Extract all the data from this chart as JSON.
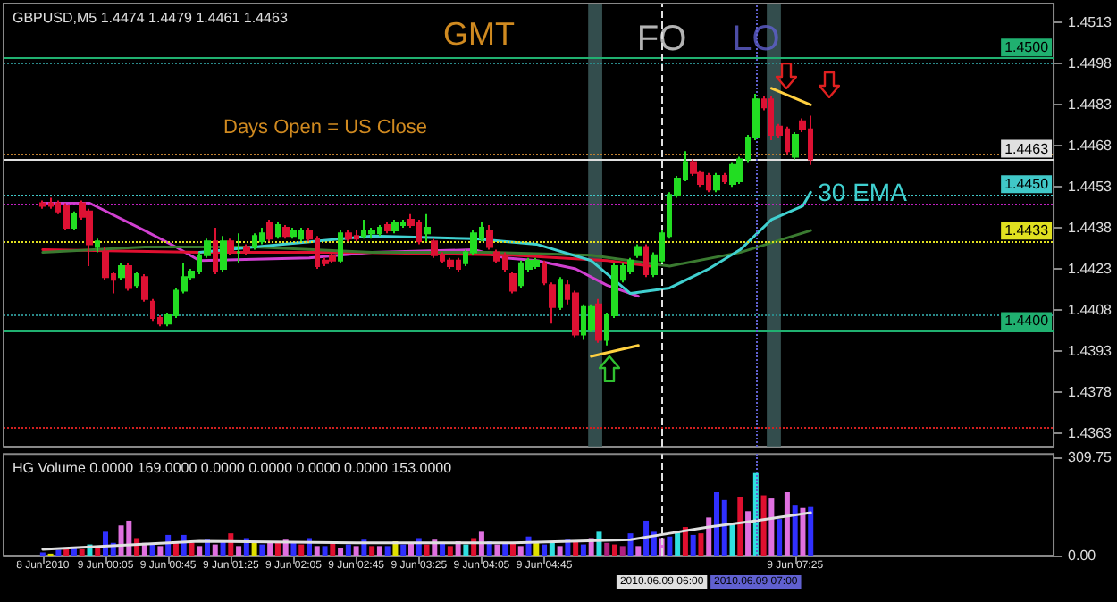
{
  "chart_data": [
    {
      "type": "candlestick",
      "title": "GBPUSD,M5 1.4474 1.4479 1.4461 1.4463",
      "x": [
        "2010-06-08T23:25",
        "2010-06-08T23:30",
        "2010-06-08T23:35",
        "2010-06-08T23:40",
        "2010-06-08T23:45",
        "2010-06-08T23:50",
        "2010-06-08T23:55",
        "2010-06-09T00:00",
        "2010-06-09T00:05",
        "2010-06-09T00:10",
        "2010-06-09T00:15",
        "2010-06-09T00:20",
        "2010-06-09T00:25",
        "2010-06-09T00:30",
        "2010-06-09T00:35",
        "2010-06-09T00:40",
        "2010-06-09T00:45",
        "2010-06-09T00:50",
        "2010-06-09T00:55",
        "2010-06-09T01:00",
        "2010-06-09T01:05",
        "2010-06-09T01:10",
        "2010-06-09T01:15",
        "2010-06-09T01:20",
        "2010-06-09T01:25",
        "2010-06-09T01:30",
        "2010-06-09T01:35",
        "2010-06-09T01:40",
        "2010-06-09T01:45",
        "2010-06-09T01:50",
        "2010-06-09T01:55",
        "2010-06-09T02:00",
        "2010-06-09T02:05",
        "2010-06-09T02:10",
        "2010-06-09T02:15",
        "2010-06-09T02:20",
        "2010-06-09T02:25",
        "2010-06-09T02:30",
        "2010-06-09T02:35",
        "2010-06-09T02:40",
        "2010-06-09T02:45",
        "2010-06-09T02:50",
        "2010-06-09T02:55",
        "2010-06-09T03:00",
        "2010-06-09T03:05",
        "2010-06-09T03:10",
        "2010-06-09T03:15",
        "2010-06-09T03:20",
        "2010-06-09T03:25",
        "2010-06-09T03:30",
        "2010-06-09T03:35",
        "2010-06-09T03:40",
        "2010-06-09T03:45",
        "2010-06-09T03:50",
        "2010-06-09T03:55",
        "2010-06-09T04:00",
        "2010-06-09T04:05",
        "2010-06-09T04:10",
        "2010-06-09T04:15",
        "2010-06-09T04:20",
        "2010-06-09T04:25",
        "2010-06-09T04:30",
        "2010-06-09T04:35",
        "2010-06-09T04:40",
        "2010-06-09T04:45",
        "2010-06-09T04:50",
        "2010-06-09T04:55",
        "2010-06-09T05:00",
        "2010-06-09T05:05",
        "2010-06-09T05:10",
        "2010-06-09T05:15",
        "2010-06-09T05:20",
        "2010-06-09T05:25",
        "2010-06-09T05:30",
        "2010-06-09T05:35",
        "2010-06-09T05:40",
        "2010-06-09T05:45",
        "2010-06-09T05:50",
        "2010-06-09T05:55",
        "2010-06-09T06:00",
        "2010-06-09T06:05",
        "2010-06-09T06:10",
        "2010-06-09T06:15",
        "2010-06-09T06:20",
        "2010-06-09T06:25",
        "2010-06-09T06:30",
        "2010-06-09T06:35",
        "2010-06-09T06:40",
        "2010-06-09T06:45",
        "2010-06-09T06:50",
        "2010-06-09T06:55",
        "2010-06-09T07:00",
        "2010-06-09T07:05",
        "2010-06-09T07:10",
        "2010-06-09T07:15",
        "2010-06-09T07:20",
        "2010-06-09T07:25",
        "2010-06-09T07:30",
        "2010-06-09T07:35"
      ],
      "ohlc": [
        [
          1.4447,
          1.4448,
          1.4445,
          1.4446
        ],
        [
          1.4447,
          1.4449,
          1.4445,
          1.4446
        ],
        [
          1.4447,
          1.4448,
          1.4443,
          1.4444
        ],
        [
          1.4446,
          1.4447,
          1.4437,
          1.4438
        ],
        [
          1.4438,
          1.4444,
          1.4437,
          1.4443
        ],
        [
          1.4447,
          1.4448,
          1.4441,
          1.4442
        ],
        [
          1.4444,
          1.4445,
          1.4424,
          1.4432
        ],
        [
          1.4431,
          1.4434,
          1.4429,
          1.4433
        ],
        [
          1.4429,
          1.4431,
          1.4419,
          1.442
        ],
        [
          1.4421,
          1.4422,
          1.4414,
          1.4419
        ],
        [
          1.442,
          1.4425,
          1.4419,
          1.4424
        ],
        [
          1.4424,
          1.4425,
          1.4415,
          1.4416
        ],
        [
          1.4417,
          1.4422,
          1.4416,
          1.4421
        ],
        [
          1.442,
          1.4421,
          1.4411,
          1.4412
        ],
        [
          1.4411,
          1.4412,
          1.4404,
          1.4405
        ],
        [
          1.4405,
          1.4406,
          1.4402,
          1.4403
        ],
        [
          1.4403,
          1.4407,
          1.4402,
          1.4406
        ],
        [
          1.4406,
          1.4416,
          1.4405,
          1.4415
        ],
        [
          1.4415,
          1.4425,
          1.4414,
          1.442
        ],
        [
          1.442,
          1.4423,
          1.4419,
          1.4422
        ],
        [
          1.4422,
          1.4429,
          1.4421,
          1.4428
        ],
        [
          1.4428,
          1.4434,
          1.4427,
          1.4433
        ],
        [
          1.4433,
          1.4438,
          1.4421,
          1.4422
        ],
        [
          1.4423,
          1.4435,
          1.4422,
          1.4433
        ],
        [
          1.4433,
          1.4434,
          1.4428,
          1.4429
        ],
        [
          1.4429,
          1.4436,
          1.4425,
          1.4429
        ],
        [
          1.4431,
          1.4432,
          1.4428,
          1.4429
        ],
        [
          1.4431,
          1.4436,
          1.443,
          1.4435
        ],
        [
          1.4433,
          1.4438,
          1.4432,
          1.4436
        ],
        [
          1.444,
          1.4441,
          1.4433,
          1.4434
        ],
        [
          1.4435,
          1.444,
          1.4434,
          1.4439
        ],
        [
          1.4438,
          1.4439,
          1.4434,
          1.4435
        ],
        [
          1.4435,
          1.4438,
          1.4434,
          1.4437
        ],
        [
          1.4434,
          1.4438,
          1.4433,
          1.4437
        ],
        [
          1.4437,
          1.4438,
          1.4433,
          1.4434
        ],
        [
          1.4434,
          1.4435,
          1.4423,
          1.4424
        ],
        [
          1.4426,
          1.4427,
          1.4424,
          1.4425
        ],
        [
          1.4428,
          1.4429,
          1.4425,
          1.4426
        ],
        [
          1.4426,
          1.4437,
          1.4425,
          1.4436
        ],
        [
          1.4436,
          1.4437,
          1.4433,
          1.4434
        ],
        [
          1.4435,
          1.4437,
          1.4433,
          1.4434
        ],
        [
          1.4435,
          1.4441,
          1.4434,
          1.4437
        ],
        [
          1.4436,
          1.4438,
          1.4434,
          1.4437
        ],
        [
          1.4436,
          1.4439,
          1.4435,
          1.4438
        ],
        [
          1.4439,
          1.444,
          1.4436,
          1.4437
        ],
        [
          1.4437,
          1.4441,
          1.4436,
          1.444
        ],
        [
          1.4439,
          1.4441,
          1.4438,
          1.444
        ],
        [
          1.4441,
          1.4443,
          1.4438,
          1.4439
        ],
        [
          1.444,
          1.4441,
          1.4432,
          1.4433
        ],
        [
          1.4436,
          1.4443,
          1.4433,
          1.4438
        ],
        [
          1.4433,
          1.4434,
          1.4427,
          1.4428
        ],
        [
          1.4428,
          1.4429,
          1.4425,
          1.4426
        ],
        [
          1.4426,
          1.4427,
          1.4423,
          1.4424
        ],
        [
          1.4426,
          1.4427,
          1.4422,
          1.4423
        ],
        [
          1.4425,
          1.443,
          1.4424,
          1.4429
        ],
        [
          1.4429,
          1.4437,
          1.4428,
          1.4436
        ],
        [
          1.4434,
          1.444,
          1.4433,
          1.4438
        ],
        [
          1.4437,
          1.4439,
          1.443,
          1.4431
        ],
        [
          1.4429,
          1.443,
          1.4425,
          1.4426
        ],
        [
          1.4428,
          1.4429,
          1.4422,
          1.4423
        ],
        [
          1.4421,
          1.4422,
          1.4414,
          1.4415
        ],
        [
          1.4417,
          1.4426,
          1.4416,
          1.4425
        ],
        [
          1.4423,
          1.4427,
          1.4422,
          1.4426
        ],
        [
          1.4424,
          1.4427,
          1.4423,
          1.4426
        ],
        [
          1.4425,
          1.4426,
          1.4417,
          1.4418
        ],
        [
          1.4417,
          1.4418,
          1.4403,
          1.4409
        ],
        [
          1.4409,
          1.442,
          1.4408,
          1.4419
        ],
        [
          1.4417,
          1.4419,
          1.441,
          1.4412
        ],
        [
          1.4414,
          1.4415,
          1.4398,
          1.4399
        ],
        [
          1.4399,
          1.441,
          1.4397,
          1.4409
        ],
        [
          1.4401,
          1.441,
          1.44,
          1.4409
        ],
        [
          1.441,
          1.4412,
          1.4396,
          1.4397
        ],
        [
          1.4397,
          1.4407,
          1.4395,
          1.4406
        ],
        [
          1.4406,
          1.4425,
          1.4405,
          1.4424
        ],
        [
          1.4419,
          1.4425,
          1.4418,
          1.4424
        ],
        [
          1.4422,
          1.4427,
          1.4421,
          1.4426
        ],
        [
          1.4428,
          1.4432,
          1.4427,
          1.4431
        ],
        [
          1.4431,
          1.4432,
          1.442,
          1.4421
        ],
        [
          1.4421,
          1.4429,
          1.442,
          1.4428
        ],
        [
          1.4426,
          1.4437,
          1.4425,
          1.4436
        ],
        [
          1.4435,
          1.4451,
          1.4434,
          1.445
        ],
        [
          1.445,
          1.4457,
          1.4449,
          1.4456
        ],
        [
          1.4456,
          1.4466,
          1.4455,
          1.4462
        ],
        [
          1.4462,
          1.4463,
          1.4457,
          1.4458
        ],
        [
          1.4458,
          1.4459,
          1.4453,
          1.4454
        ],
        [
          1.4457,
          1.4458,
          1.4451,
          1.4452
        ],
        [
          1.4452,
          1.4458,
          1.4451,
          1.4457
        ],
        [
          1.4457,
          1.4458,
          1.4454,
          1.4455
        ],
        [
          1.4454,
          1.4462,
          1.4453,
          1.4461
        ],
        [
          1.4455,
          1.4464,
          1.4454,
          1.4463
        ],
        [
          1.4463,
          1.4472,
          1.4462,
          1.4471
        ],
        [
          1.4471,
          1.4487,
          1.447,
          1.4485
        ],
        [
          1.4485,
          1.4486,
          1.4481,
          1.4482
        ],
        [
          1.4485,
          1.4486,
          1.447,
          1.4472
        ],
        [
          1.4475,
          1.4476,
          1.4471,
          1.4472
        ],
        [
          1.4474,
          1.4475,
          1.4465,
          1.4466
        ],
        [
          1.4464,
          1.4473,
          1.4463,
          1.4472
        ],
        [
          1.4477,
          1.4478,
          1.4473,
          1.4474
        ],
        [
          1.4474,
          1.4479,
          1.4461,
          1.4463
        ]
      ],
      "series": [
        {
          "type": "line",
          "color": "#d040d0",
          "x": [
            "2010-06-08T23:25",
            "2010-06-08T23:55",
            "2010-06-09T00:30",
            "2010-06-09T00:50",
            "2010-06-09T01:05",
            "2010-06-09T02:15",
            "2010-06-09T02:55",
            "2010-06-09T04:00",
            "2010-06-09T04:20",
            "2010-06-09T04:40",
            "2010-06-09T05:05",
            "2010-06-09T05:25",
            "2010-06-09T05:40",
            "2010-06-09T05:45"
          ],
          "values": [
            1.4447,
            1.4447,
            1.4437,
            1.4431,
            1.4426,
            1.4427,
            1.4429,
            1.443,
            1.4427,
            1.4426,
            1.4423,
            1.4417,
            1.4414,
            1.4413
          ]
        },
        {
          "type": "line",
          "color": "#e01030",
          "x": [
            "2010-06-08T23:25",
            "2010-06-09T01:05",
            "2010-06-09T02:45",
            "2010-06-09T04:25",
            "2010-06-09T05:25",
            "2010-06-09T05:53"
          ],
          "values": [
            1.443,
            1.4429,
            1.4429,
            1.4428,
            1.4426,
            1.4424
          ]
        },
        {
          "type": "line",
          "color": "#3a7a30",
          "x": [
            "2010-06-08T23:25",
            "2010-06-09T00:30",
            "2010-06-09T01:40",
            "2010-06-09T02:55",
            "2010-06-09T04:10",
            "2010-06-09T05:15",
            "2010-06-09T06:05",
            "2010-06-09T06:50",
            "2010-06-09T07:35"
          ],
          "values": [
            1.4429,
            1.4431,
            1.4431,
            1.4429,
            1.4429,
            1.4428,
            1.4424,
            1.4429,
            1.4437
          ]
        },
        {
          "type": "line",
          "name": "30 EMA",
          "color": "#40d0d0",
          "x": [
            "2010-06-09T01:05",
            "2010-06-09T01:40",
            "2010-06-09T02:55",
            "2010-06-09T04:00",
            "2010-06-09T04:40",
            "2010-06-09T05:15",
            "2010-06-09T05:40",
            "2010-06-09T06:05",
            "2010-06-09T06:30",
            "2010-06-09T06:50",
            "2010-06-09T07:10",
            "2010-06-09T07:30",
            "2010-06-09T07:35"
          ],
          "values": [
            1.4429,
            1.4431,
            1.4435,
            1.4434,
            1.4432,
            1.4426,
            1.4414,
            1.4416,
            1.4423,
            1.443,
            1.4441,
            1.4446,
            1.4451
          ]
        },
        {
          "type": "line",
          "color": "#ffd040",
          "x": [
            "2010-06-09T05:15",
            "2010-06-09T05:45"
          ],
          "values": [
            1.4391,
            1.4395
          ]
        },
        {
          "type": "line",
          "color": "#ffd040",
          "x": [
            "2010-06-09T07:10",
            "2010-06-09T07:35"
          ],
          "values": [
            1.4489,
            1.4483
          ]
        }
      ],
      "xlim": [
        "2010-06-08T23:00",
        "2010-06-09T10:10"
      ],
      "ylim": [
        1.4358,
        1.452
      ],
      "yticks": [
        1.4513,
        1.4498,
        1.4483,
        1.4468,
        1.4453,
        1.4438,
        1.4423,
        1.4408,
        1.4393,
        1.4378,
        1.4363
      ],
      "ref_lines": [
        {
          "axis": "y",
          "value": 1.45,
          "label": "1.4500",
          "color": "#20b070",
          "line_style": "solid"
        },
        {
          "axis": "y",
          "value": 1.4498,
          "color": "#2a8a8a",
          "line_style": "dotted"
        },
        {
          "axis": "y",
          "value": 1.4465,
          "color": "#c08030",
          "line_style": "dotted"
        },
        {
          "axis": "y",
          "value": 1.4463,
          "label": "1.4463",
          "color": "#e0e0e0",
          "line_style": "solid"
        },
        {
          "axis": "y",
          "value": 1.445,
          "label": "1.4450",
          "color": "#40c8c8",
          "line_style": "dotted"
        },
        {
          "axis": "y",
          "value": 1.4447,
          "color": "#c020c0",
          "line_style": "dotted"
        },
        {
          "axis": "y",
          "value": 1.4433,
          "label": "1.4433",
          "color": "#e0e020",
          "line_style": "dotted"
        },
        {
          "axis": "y",
          "value": 1.4406,
          "color": "#2a8a8a",
          "line_style": "dotted"
        },
        {
          "axis": "y",
          "value": 1.44,
          "label": "1.4400",
          "color": "#20b070",
          "line_style": "solid"
        },
        {
          "axis": "y",
          "value": 1.4365,
          "color": "#d02020",
          "line_style": "dotted"
        },
        {
          "axis": "x",
          "value": "2010-06-09T06:00",
          "label": "FO",
          "color": "#e0e0e0",
          "line_style": "dashed"
        },
        {
          "axis": "x",
          "value": "2010-06-09T07:00",
          "label": "LO",
          "color": "#6060d0",
          "line_style": "dotted"
        }
      ],
      "bands": [
        {
          "axis": "x",
          "from": "2010-06-09T05:13",
          "to": "2010-06-09T05:22",
          "color": "#3c5a5a"
        },
        {
          "axis": "x",
          "from": "2010-06-09T07:07",
          "to": "2010-06-09T07:16",
          "color": "#3c5a5a"
        }
      ],
      "annotations": [
        "GMT",
        "Days Open = US Close"
      ],
      "tick_labels": "y"
    },
    {
      "type": "bar",
      "title": "HG Volume 0.0000 169.0000 0.0000 0.0000 0.0000 0.0000 153.0000",
      "x": [
        "2010-06-08T23:25",
        "2010-06-08T23:30",
        "2010-06-08T23:35",
        "2010-06-08T23:40",
        "2010-06-08T23:45",
        "2010-06-08T23:50",
        "2010-06-08T23:55",
        "2010-06-09T00:00",
        "2010-06-09T00:05",
        "2010-06-09T00:10",
        "2010-06-09T00:15",
        "2010-06-09T00:20",
        "2010-06-09T00:25",
        "2010-06-09T00:30",
        "2010-06-09T00:35",
        "2010-06-09T00:40",
        "2010-06-09T00:45",
        "2010-06-09T00:50",
        "2010-06-09T00:55",
        "2010-06-09T01:00",
        "2010-06-09T01:05",
        "2010-06-09T01:10",
        "2010-06-09T01:15",
        "2010-06-09T01:20",
        "2010-06-09T01:25",
        "2010-06-09T01:30",
        "2010-06-09T01:35",
        "2010-06-09T01:40",
        "2010-06-09T01:45",
        "2010-06-09T01:50",
        "2010-06-09T01:55",
        "2010-06-09T02:00",
        "2010-06-09T02:05",
        "2010-06-09T02:10",
        "2010-06-09T02:15",
        "2010-06-09T02:20",
        "2010-06-09T02:25",
        "2010-06-09T02:30",
        "2010-06-09T02:35",
        "2010-06-09T02:40",
        "2010-06-09T02:45",
        "2010-06-09T02:50",
        "2010-06-09T02:55",
        "2010-06-09T03:00",
        "2010-06-09T03:05",
        "2010-06-09T03:10",
        "2010-06-09T03:15",
        "2010-06-09T03:20",
        "2010-06-09T03:25",
        "2010-06-09T03:30",
        "2010-06-09T03:35",
        "2010-06-09T03:40",
        "2010-06-09T03:45",
        "2010-06-09T03:50",
        "2010-06-09T03:55",
        "2010-06-09T04:00",
        "2010-06-09T04:05",
        "2010-06-09T04:10",
        "2010-06-09T04:15",
        "2010-06-09T04:20",
        "2010-06-09T04:25",
        "2010-06-09T04:30",
        "2010-06-09T04:35",
        "2010-06-09T04:40",
        "2010-06-09T04:45",
        "2010-06-09T04:50",
        "2010-06-09T04:55",
        "2010-06-09T05:00",
        "2010-06-09T05:05",
        "2010-06-09T05:10",
        "2010-06-09T05:15",
        "2010-06-09T05:20",
        "2010-06-09T05:25",
        "2010-06-09T05:30",
        "2010-06-09T05:35",
        "2010-06-09T05:40",
        "2010-06-09T05:45",
        "2010-06-09T05:50",
        "2010-06-09T05:55",
        "2010-06-09T06:00",
        "2010-06-09T06:05",
        "2010-06-09T06:10",
        "2010-06-09T06:15",
        "2010-06-09T06:20",
        "2010-06-09T06:25",
        "2010-06-09T06:30",
        "2010-06-09T06:35",
        "2010-06-09T06:40",
        "2010-06-09T06:45",
        "2010-06-09T06:50",
        "2010-06-09T06:55",
        "2010-06-09T07:00",
        "2010-06-09T07:05",
        "2010-06-09T07:10",
        "2010-06-09T07:15",
        "2010-06-09T07:20",
        "2010-06-09T07:25",
        "2010-06-09T07:30",
        "2010-06-09T07:35"
      ],
      "series": [
        {
          "values": [
            10,
            6,
            18,
            22,
            25,
            20,
            35,
            30,
            75,
            40,
            95,
            110,
            55,
            40,
            35,
            30,
            65,
            45,
            65,
            40,
            30,
            50,
            35,
            45,
            70,
            30,
            55,
            45,
            35,
            40,
            45,
            50,
            40,
            35,
            55,
            30,
            30,
            45,
            25,
            35,
            30,
            50,
            30,
            30,
            30,
            45,
            35,
            40,
            55,
            35,
            50,
            40,
            30,
            45,
            35,
            55,
            75,
            45,
            35,
            40,
            40,
            30,
            60,
            45,
            35,
            40,
            30,
            50,
            45,
            35,
            55,
            75,
            40,
            35,
            30,
            70,
            30,
            110,
            75,
            55,
            60,
            75,
            90,
            65,
            70,
            120,
            200,
            175,
            100,
            185,
            140,
            260,
            190,
            180,
            115,
            200,
            160,
            150,
            153
          ],
          "colors": [
            "#3030ff",
            "#e0e000",
            "#3030ff",
            "#e01030",
            "#3030ff",
            "#e01030",
            "#30e0e0",
            "#e01030",
            "#3030ff",
            "#3030ff",
            "#e070e0",
            "#e070e0",
            "#e01030",
            "#e070e0",
            "#3030ff",
            "#e070e0",
            "#3030ff",
            "#e01030",
            "#3030ff",
            "#e01030",
            "#e070e0",
            "#3030ff",
            "#e070e0",
            "#3030ff",
            "#e01030",
            "#e070e0",
            "#3030ff",
            "#e0e000",
            "#3030ff",
            "#e070e0",
            "#e01030",
            "#e070e0",
            "#3030ff",
            "#e01030",
            "#3030ff",
            "#e070e0",
            "#3030ff",
            "#e01030",
            "#e070e0",
            "#3030ff",
            "#e070e0",
            "#3030ff",
            "#e01030",
            "#e070e0",
            "#3030ff",
            "#e0e000",
            "#3030ff",
            "#e070e0",
            "#3030ff",
            "#e01030",
            "#e070e0",
            "#3030ff",
            "#e01030",
            "#e070e0",
            "#30e0e0",
            "#e01030",
            "#e070e0",
            "#3030ff",
            "#e070e0",
            "#3030ff",
            "#e01030",
            "#e070e0",
            "#3030ff",
            "#e0e000",
            "#3030ff",
            "#30e0e0",
            "#e070e0",
            "#3030ff",
            "#e01030",
            "#3030ff",
            "#e070e0",
            "#30e0e0",
            "#b02080",
            "#e01030",
            "#b02080",
            "#3030ff",
            "#e070e0",
            "#3030ff",
            "#3030ff",
            "#e070e0",
            "#3030ff",
            "#30e0e0",
            "#e01030",
            "#3030ff",
            "#e01030",
            "#e070e0",
            "#3030ff",
            "#3030ff",
            "#30e0e0",
            "#e01030",
            "#e070e0",
            "#30e0e0",
            "#e01030",
            "#e070e0",
            "#3030ff",
            "#e070e0",
            "#3030ff",
            "#e070e0",
            "#3030ff"
          ]
        },
        {
          "type": "line",
          "color": "#e0e0e0",
          "x": [
            "2010-06-08T23:25",
            "2010-06-09T01:05",
            "2010-06-09T02:45",
            "2010-06-09T04:25",
            "2010-06-09T05:40",
            "2010-06-09T06:05",
            "2010-06-09T06:30",
            "2010-06-09T07:00",
            "2010-06-09T07:35"
          ],
          "values": [
            20,
            45,
            40,
            40,
            50,
            70,
            90,
            110,
            135
          ]
        }
      ],
      "xlim": [
        "2010-06-08T23:00",
        "2010-06-09T10:10"
      ],
      "ylim": [
        0,
        320
      ],
      "yticks": [
        {
          "value": 0,
          "label": "0.00"
        },
        309.75
      ],
      "xticks": [
        {
          "value": "2010-06-08T23:25",
          "label": "8 Jun 2010"
        },
        {
          "value": "2010-06-09T00:05",
          "label": "9 Jun 00:05"
        },
        {
          "value": "2010-06-09T00:45",
          "label": "9 Jun 00:45"
        },
        {
          "value": "2010-06-09T01:25",
          "label": "9 Jun 01:25"
        },
        {
          "value": "2010-06-09T02:05",
          "label": "9 Jun 02:05"
        },
        {
          "value": "2010-06-09T02:45",
          "label": "9 Jun 02:45"
        },
        {
          "value": "2010-06-09T03:25",
          "label": "9 Jun 03:25"
        },
        {
          "value": "2010-06-09T04:05",
          "label": "9 Jun 04:05"
        },
        {
          "value": "2010-06-09T04:45",
          "label": "9 Jun 04:45"
        },
        {
          "value": "2010-06-09T07:25",
          "label": "9 Jun 07:25"
        }
      ],
      "ref_lines": [
        {
          "axis": "x",
          "value": "2010-06-09T06:00",
          "label": "2010.06.09 06:00",
          "color": "#e0e0e0",
          "line_style": "dashed"
        },
        {
          "axis": "x",
          "value": "2010-06-09T07:00",
          "label": "2010.06.09 07:00",
          "color": "#6060d0",
          "line_style": "dotted"
        }
      ]
    }
  ]
}
